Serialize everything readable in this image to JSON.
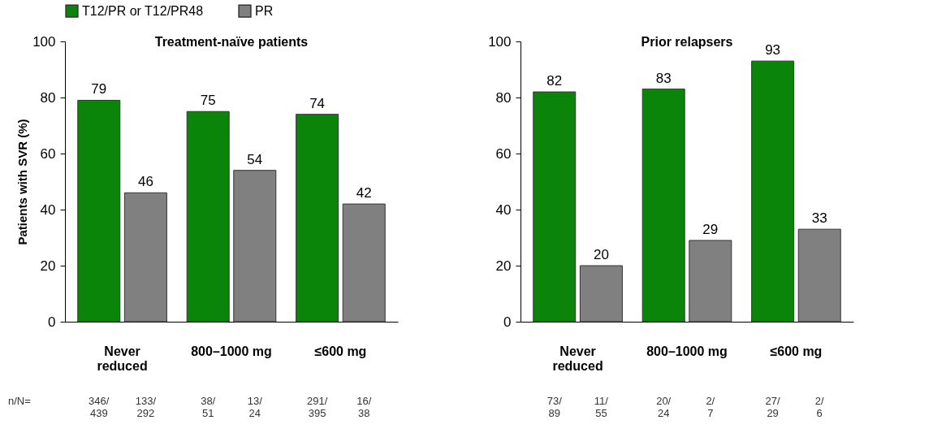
{
  "chart_data": [
    {
      "type": "bar",
      "title": "Treatment-naïve patients",
      "ylabel": "Patients with SVR (%)",
      "categories": [
        "Never reduced",
        "800–1000 mg",
        "≤600 mg"
      ],
      "series": [
        {
          "name": "T12/PR or T12/PR48",
          "color": "#0a850a",
          "values": [
            79,
            75,
            74
          ]
        },
        {
          "name": "PR",
          "color": "#808080",
          "values": [
            46,
            54,
            42
          ]
        }
      ],
      "ylim": [
        0,
        100
      ],
      "yticks": [
        0,
        20,
        40,
        60,
        80,
        100
      ],
      "data_labels": true,
      "legend": "top",
      "grid": false,
      "annotations": [
        "n/N=",
        "346/439",
        "133/292",
        "38/51",
        "13/24",
        "291/395",
        "16/38"
      ]
    },
    {
      "type": "bar",
      "title": "Prior relapsers",
      "categories": [
        "Never reduced",
        "800–1000 mg",
        "≤600 mg"
      ],
      "series": [
        {
          "name": "T12/PR or T12/PR48",
          "color": "#0a850a",
          "values": [
            82,
            83,
            93
          ]
        },
        {
          "name": "PR",
          "color": "#808080",
          "values": [
            20,
            29,
            33
          ]
        }
      ],
      "ylim": [
        0,
        100
      ],
      "yticks": [
        0,
        20,
        40,
        60,
        80,
        100
      ],
      "data_labels": true,
      "legend": "top",
      "grid": false,
      "annotations": [
        "73/89",
        "11/55",
        "20/24",
        "2/7",
        "27/29",
        "2/6"
      ]
    }
  ]
}
